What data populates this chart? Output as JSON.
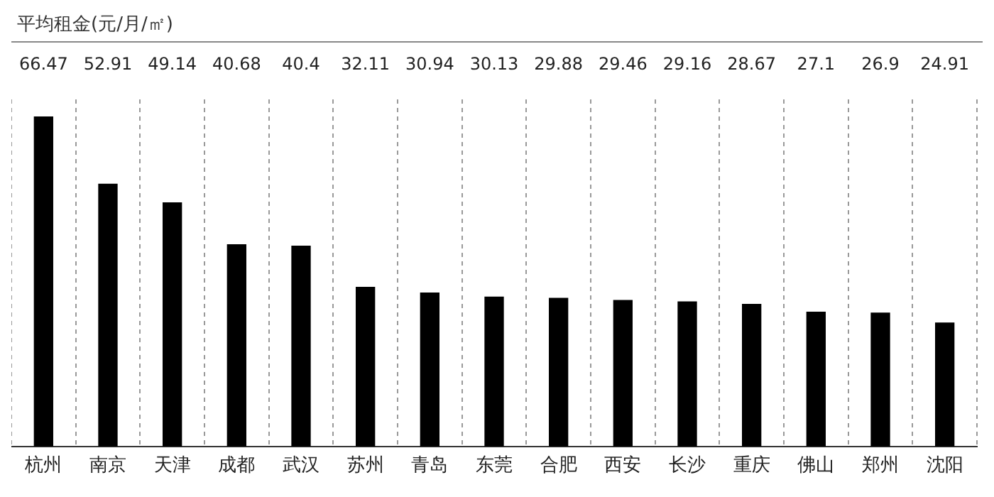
{
  "chart_data": {
    "type": "bar",
    "title": "平均租金(元/月/㎡)",
    "categories": [
      "杭州",
      "南京",
      "天津",
      "成都",
      "武汉",
      "苏州",
      "青岛",
      "东莞",
      "合肥",
      "西安",
      "长沙",
      "重庆",
      "佛山",
      "郑州",
      "沈阳"
    ],
    "values": [
      66.47,
      52.91,
      49.14,
      40.68,
      40.4,
      32.11,
      30.94,
      30.13,
      29.88,
      29.46,
      29.16,
      28.67,
      27.1,
      26.9,
      24.91
    ],
    "color": "#000000",
    "data_labels": true,
    "grid": "x",
    "legend": false
  }
}
